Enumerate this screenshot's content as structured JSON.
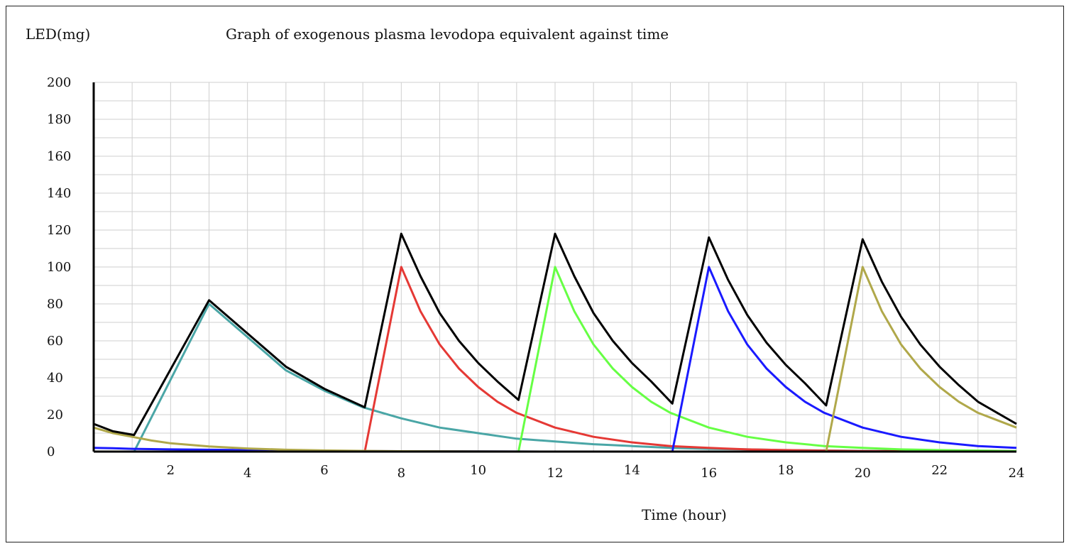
{
  "chart_data": {
    "type": "line",
    "title": "Graph of exogenous plasma levodopa equivalent against time",
    "ylabel": "LED(mg)",
    "xlabel": "Time (hour)",
    "xlim": [
      0,
      24
    ],
    "ylim": [
      0,
      200
    ],
    "x_ticks": [
      "2",
      "4",
      "6",
      "8",
      "10",
      "12",
      "14",
      "16",
      "18",
      "20",
      "22",
      "24"
    ],
    "y_ticks": [
      "0",
      "20",
      "40",
      "60",
      "80",
      "100",
      "120",
      "140",
      "160",
      "180",
      "200"
    ],
    "grid": true,
    "series": [
      {
        "color": "#4aa6a6",
        "points": [
          [
            0,
            0
          ],
          [
            1.05,
            0
          ],
          [
            3,
            80
          ],
          [
            4,
            62
          ],
          [
            5,
            44
          ],
          [
            6,
            33
          ],
          [
            7,
            24
          ],
          [
            8,
            18
          ],
          [
            9,
            13
          ],
          [
            10,
            10
          ],
          [
            11,
            7
          ],
          [
            12,
            5.5
          ],
          [
            13,
            4
          ],
          [
            14,
            3
          ],
          [
            15,
            2
          ],
          [
            16,
            1.5
          ],
          [
            17,
            1.2
          ],
          [
            18,
            0.8
          ],
          [
            19,
            0.6
          ],
          [
            20,
            0.4
          ],
          [
            22,
            0.2
          ],
          [
            24,
            0.1
          ]
        ]
      },
      {
        "color": "#e53935",
        "points": [
          [
            0,
            0
          ],
          [
            7.05,
            0
          ],
          [
            8,
            100
          ],
          [
            8.5,
            76
          ],
          [
            9,
            58
          ],
          [
            9.5,
            45
          ],
          [
            10,
            35
          ],
          [
            10.5,
            27
          ],
          [
            11,
            21
          ],
          [
            12,
            13
          ],
          [
            13,
            8
          ],
          [
            14,
            5
          ],
          [
            15,
            3
          ],
          [
            16,
            2
          ],
          [
            17,
            1.2
          ],
          [
            18,
            0.8
          ],
          [
            20,
            0.3
          ],
          [
            24,
            0.1
          ]
        ]
      },
      {
        "color": "#66ff44",
        "points": [
          [
            0,
            0
          ],
          [
            11.05,
            0
          ],
          [
            12,
            100
          ],
          [
            12.5,
            76
          ],
          [
            13,
            58
          ],
          [
            13.5,
            45
          ],
          [
            14,
            35
          ],
          [
            14.5,
            27
          ],
          [
            15,
            21
          ],
          [
            16,
            13
          ],
          [
            17,
            8
          ],
          [
            18,
            5
          ],
          [
            19,
            3
          ],
          [
            20,
            2
          ],
          [
            21,
            1.2
          ],
          [
            22,
            0.8
          ],
          [
            24,
            0.3
          ]
        ]
      },
      {
        "color": "#1a1aff",
        "points": [
          [
            0,
            2
          ],
          [
            0.5,
            1.8
          ],
          [
            1,
            1.5
          ],
          [
            2,
            1.2
          ],
          [
            4,
            0.8
          ],
          [
            6,
            0.4
          ],
          [
            8,
            0.2
          ],
          [
            10,
            0.1
          ],
          [
            12,
            0
          ],
          [
            15.05,
            0
          ],
          [
            16,
            100
          ],
          [
            16.5,
            76
          ],
          [
            17,
            58
          ],
          [
            17.5,
            45
          ],
          [
            18,
            35
          ],
          [
            18.5,
            27
          ],
          [
            19,
            21
          ],
          [
            20,
            13
          ],
          [
            21,
            8
          ],
          [
            22,
            5
          ],
          [
            23,
            3
          ],
          [
            24,
            2
          ]
        ]
      },
      {
        "color": "#b0a84a",
        "points": [
          [
            0,
            13
          ],
          [
            0.5,
            10
          ],
          [
            1,
            8
          ],
          [
            1.5,
            6
          ],
          [
            2,
            4.5
          ],
          [
            3,
            2.8
          ],
          [
            4,
            1.7
          ],
          [
            5,
            1
          ],
          [
            6,
            0.6
          ],
          [
            7,
            0.4
          ],
          [
            8,
            0.2
          ],
          [
            10,
            0.1
          ],
          [
            12,
            0
          ],
          [
            19.05,
            0
          ],
          [
            20,
            100
          ],
          [
            20.5,
            76
          ],
          [
            21,
            58
          ],
          [
            21.5,
            45
          ],
          [
            22,
            35
          ],
          [
            22.5,
            27
          ],
          [
            23,
            21
          ],
          [
            24,
            13
          ]
        ]
      },
      {
        "color": "#000000",
        "points": [
          [
            0,
            15
          ],
          [
            0.5,
            11
          ],
          [
            1.05,
            9
          ],
          [
            3,
            82
          ],
          [
            4,
            64
          ],
          [
            5,
            46
          ],
          [
            6,
            34
          ],
          [
            7.05,
            24
          ],
          [
            8,
            118
          ],
          [
            8.5,
            95
          ],
          [
            9,
            75
          ],
          [
            9.5,
            60
          ],
          [
            10,
            48
          ],
          [
            10.5,
            38
          ],
          [
            11.05,
            28
          ],
          [
            12,
            118
          ],
          [
            12.5,
            95
          ],
          [
            13,
            75
          ],
          [
            13.5,
            60
          ],
          [
            14,
            48
          ],
          [
            14.5,
            38
          ],
          [
            15.05,
            26
          ],
          [
            16,
            116
          ],
          [
            16.5,
            93
          ],
          [
            17,
            74
          ],
          [
            17.5,
            59
          ],
          [
            18,
            47
          ],
          [
            18.5,
            37
          ],
          [
            19.05,
            25
          ],
          [
            20,
            115
          ],
          [
            20.5,
            92
          ],
          [
            21,
            73
          ],
          [
            21.5,
            58
          ],
          [
            22,
            46
          ],
          [
            22.5,
            36
          ],
          [
            23,
            27
          ],
          [
            24,
            15
          ]
        ]
      }
    ]
  }
}
